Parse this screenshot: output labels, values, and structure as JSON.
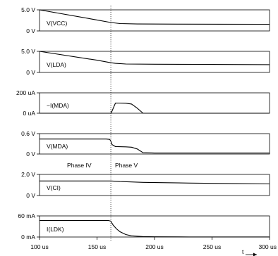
{
  "chart_data": {
    "type": "line",
    "x_ticks": [
      "100 us",
      "150 us",
      "200 us",
      "250 us",
      "300 us"
    ],
    "x_tick_values": [
      100,
      150,
      200,
      250,
      300
    ],
    "xlim": [
      100,
      300
    ],
    "x_unit_label": "t",
    "marker_x": 162,
    "phase_labels": [
      "Phase IV",
      "Phase V"
    ],
    "panels": [
      {
        "label": "V(VCC)",
        "y_ticks": [
          "5.0 V",
          "0 V"
        ],
        "y_tick_values": [
          5.0,
          0
        ],
        "ylim": [
          0,
          5.0
        ],
        "x": [
          100,
          150,
          162,
          170,
          185,
          220,
          260,
          300
        ],
        "y": [
          5.0,
          2.6,
          2.0,
          1.75,
          1.65,
          1.62,
          1.6,
          1.58
        ]
      },
      {
        "label": "V(LDA)",
        "y_ticks": [
          "5.0 V",
          "0 V"
        ],
        "y_tick_values": [
          5.0,
          0
        ],
        "ylim": [
          0,
          5.0
        ],
        "x": [
          100,
          150,
          162,
          166,
          175,
          200,
          250,
          300
        ],
        "y": [
          5.0,
          2.9,
          2.3,
          2.15,
          2.0,
          1.95,
          1.9,
          1.85
        ]
      },
      {
        "label": "−I(MDA)",
        "y_ticks": [
          "200 uA",
          "0 uA"
        ],
        "y_tick_values": [
          200,
          0
        ],
        "ylim": [
          0,
          200
        ],
        "x": [
          100,
          162,
          163,
          166,
          175,
          180,
          185,
          190,
          300
        ],
        "y": [
          0,
          0,
          20,
          100,
          98,
          90,
          50,
          0,
          0
        ]
      },
      {
        "label": "V(MDA)",
        "y_ticks": [
          "0.6 V",
          "0 V"
        ],
        "y_tick_values": [
          0.6,
          0
        ],
        "ylim": [
          0,
          0.6
        ],
        "x": [
          100,
          158,
          161,
          162,
          163,
          166,
          175,
          180,
          185,
          190,
          200,
          300
        ],
        "y": [
          0.44,
          0.44,
          0.43,
          0.38,
          0.28,
          0.22,
          0.21,
          0.2,
          0.15,
          0.04,
          0.03,
          0.03
        ]
      },
      {
        "label": "V(CI)",
        "y_ticks": [
          "2.0 V",
          "0 V"
        ],
        "y_tick_values": [
          2.0,
          0
        ],
        "ylim": [
          0,
          2.0
        ],
        "x": [
          100,
          162,
          170,
          190,
          230,
          270,
          300
        ],
        "y": [
          1.38,
          1.38,
          1.33,
          1.25,
          1.18,
          1.13,
          1.1
        ]
      },
      {
        "label": "I(LDK)",
        "y_ticks": [
          "60 mA",
          "0 mA"
        ],
        "y_tick_values": [
          60,
          0
        ],
        "ylim": [
          0,
          60
        ],
        "x": [
          100,
          160,
          162,
          164,
          167,
          170,
          175,
          180,
          190,
          200,
          230,
          300
        ],
        "y": [
          47,
          47,
          45,
          34,
          23,
          15,
          7,
          3.5,
          1.2,
          0.6,
          0.3,
          0.2
        ]
      }
    ]
  }
}
